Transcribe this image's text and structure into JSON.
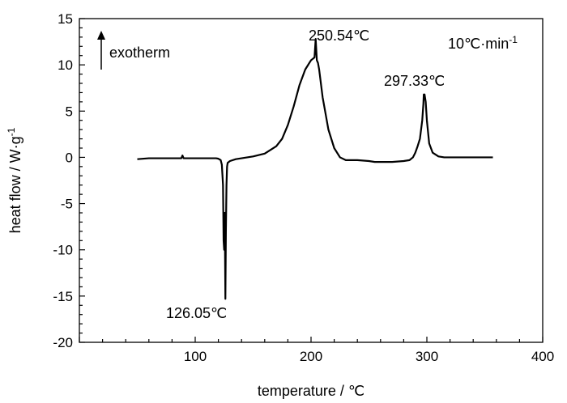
{
  "chart_data": {
    "type": "line",
    "xlabel": "temperature / ℃",
    "ylabel": "heat flow / W·g",
    "ylabel_sup": "-1",
    "xlim": [
      0,
      400
    ],
    "ylim": [
      -20,
      15
    ],
    "xticks": [
      100,
      200,
      300,
      400
    ],
    "yticks": [
      15,
      10,
      5,
      0,
      -5,
      -10,
      -15,
      -20
    ],
    "grid": false,
    "series": [
      {
        "x": [
          50,
          60,
          80,
          88,
          89,
          90,
          100,
          110,
          118,
          120,
          122,
          123,
          124,
          124.5,
          125,
          125.5,
          126.05,
          126.5,
          127,
          127.5,
          128,
          130,
          135,
          140,
          145,
          150,
          160,
          170,
          175,
          180,
          185,
          190,
          195,
          200,
          203,
          204,
          205,
          206,
          207,
          208,
          210,
          215,
          220,
          225,
          230,
          235,
          240,
          250,
          255,
          260,
          270,
          280,
          285,
          288,
          290,
          292,
          294,
          296,
          297,
          297.33,
          298,
          299,
          300,
          302,
          305,
          310,
          315,
          320,
          325,
          330,
          340,
          357
        ],
        "y": [
          -0.2,
          -0.1,
          -0.1,
          -0.1,
          0.2,
          -0.1,
          -0.1,
          -0.1,
          -0.1,
          -0.15,
          -0.3,
          -0.8,
          -3,
          -9,
          -10,
          -6,
          -15.3,
          -8,
          -3,
          -1,
          -0.6,
          -0.4,
          -0.2,
          -0.1,
          0.0,
          0.1,
          0.4,
          1.2,
          2.0,
          3.5,
          5.5,
          7.8,
          9.5,
          10.5,
          10.8,
          12.8,
          10.5,
          10.2,
          9.5,
          8.5,
          6.5,
          3.0,
          1.0,
          0.0,
          -0.3,
          -0.3,
          -0.3,
          -0.4,
          -0.5,
          -0.5,
          -0.5,
          -0.4,
          -0.3,
          0.0,
          0.5,
          1.2,
          2.0,
          4.0,
          5.8,
          6.8,
          6.8,
          6.0,
          4.0,
          1.5,
          0.5,
          0.1,
          0.0,
          0.0,
          0.0,
          0.0,
          0.0,
          0.0
        ]
      }
    ],
    "annotations": {
      "peak1": "126.05℃",
      "peak2": "250.54℃",
      "peak3": "297.33℃",
      "exotherm": "exotherm",
      "rate_main": "10℃·min",
      "rate_sup": "-1"
    }
  }
}
